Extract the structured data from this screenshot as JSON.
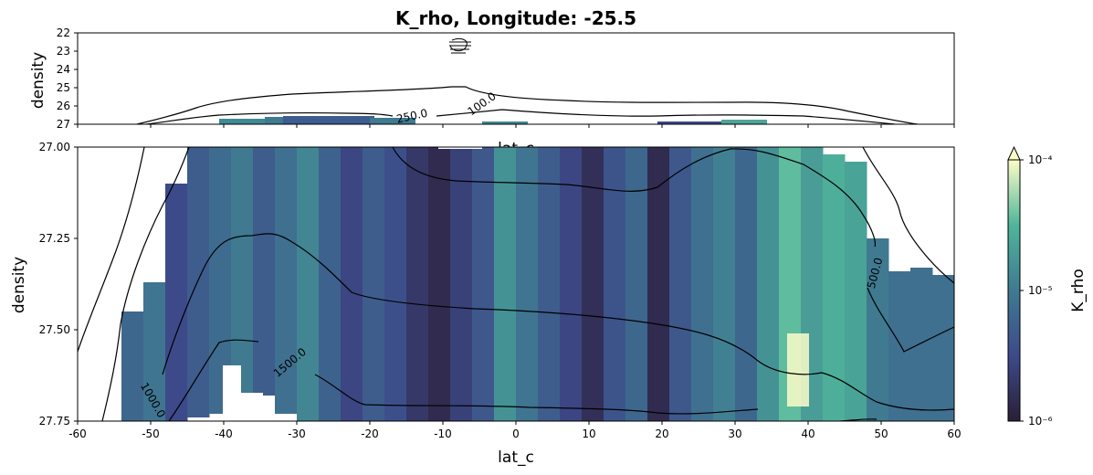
{
  "title": "K_rho, Longitude: -25.5",
  "colors": {
    "map_low": "#2b1e36",
    "map_mid1": "#3d4a8a",
    "map_mid2": "#3f7a91",
    "map_mid3": "#4fb59a",
    "map_high": "#fdfdc9",
    "contour": "#000000"
  },
  "chart_data": [
    {
      "type": "heatmap",
      "panel": "top",
      "title": "K_rho, Longitude: -25.5",
      "xlabel": "lat_c",
      "ylabel": "density",
      "xlim": [
        -60,
        60
      ],
      "ylim": [
        27,
        22
      ],
      "x_ticks": [
        "-60",
        "-50",
        "-40",
        "-30",
        "-20",
        "-10",
        "0",
        "10",
        "20",
        "30",
        "40",
        "50",
        "60"
      ],
      "y_ticks": [
        "22",
        "23",
        "24",
        "25",
        "26",
        "27"
      ],
      "contour_labels": [
        "250.0",
        "100.0"
      ]
    },
    {
      "type": "heatmap",
      "panel": "main",
      "xlabel": "lat_c",
      "ylabel": "density",
      "xlim": [
        -60,
        60
      ],
      "ylim": [
        27.75,
        27.0
      ],
      "x_ticks": [
        "-60",
        "-50",
        "-40",
        "-30",
        "-20",
        "-10",
        "0",
        "10",
        "20",
        "30",
        "40",
        "50",
        "60"
      ],
      "y_ticks": [
        "27.00",
        "27.25",
        "27.50",
        "27.75"
      ],
      "colorbar": {
        "label": "K_rho",
        "scale": "log",
        "range": [
          1e-06,
          0.0001
        ],
        "ticks": [
          "10⁻⁶",
          "10⁻⁵",
          "10⁻⁴"
        ]
      },
      "contour_labels": [
        "1500.0",
        "1000.0",
        "500.0"
      ],
      "columns": [
        {
          "lat": -52.5,
          "top": 27.45,
          "bottom": 27.75,
          "log10K": -5.2
        },
        {
          "lat": -49.5,
          "top": 27.37,
          "bottom": 27.76,
          "log10K": -5.05
        },
        {
          "lat": -46.5,
          "top": 27.1,
          "bottom": 27.76,
          "log10K": -5.5
        },
        {
          "lat": -43.5,
          "top": 27.0,
          "bottom": 27.74,
          "log10K": -5.3
        },
        {
          "lat": -40.5,
          "top": 27.0,
          "bottom": 27.73,
          "log10K": -5.15
        },
        {
          "lat": -37.5,
          "top": 27.0,
          "bottom": 27.75,
          "log10K": -5.0
        },
        {
          "lat": -34.5,
          "top": 27.0,
          "bottom": 27.68,
          "log10K": -5.3
        },
        {
          "lat": -31.5,
          "top": 27.0,
          "bottom": 27.73,
          "log10K": -5.1
        },
        {
          "lat": -28.5,
          "top": 27.0,
          "bottom": 27.75,
          "log10K": -4.9
        },
        {
          "lat": -25.5,
          "top": 27.0,
          "bottom": 27.75,
          "log10K": -5.25
        },
        {
          "lat": -22.5,
          "top": 27.0,
          "bottom": 27.75,
          "log10K": -5.55
        },
        {
          "lat": -19.5,
          "top": 27.0,
          "bottom": 27.75,
          "log10K": -5.3
        },
        {
          "lat": -16.5,
          "top": 27.0,
          "bottom": 27.75,
          "log10K": -5.45
        },
        {
          "lat": -13.5,
          "top": 27.0,
          "bottom": 27.75,
          "log10K": -5.7
        },
        {
          "lat": -10.5,
          "top": 27.0,
          "bottom": 27.75,
          "log10K": -5.85
        },
        {
          "lat": -7.5,
          "top": 27.0,
          "bottom": 27.75,
          "log10K": -5.6
        },
        {
          "lat": -4.5,
          "top": 27.0,
          "bottom": 27.75,
          "log10K": -5.35
        },
        {
          "lat": -1.5,
          "top": 27.0,
          "bottom": 27.75,
          "log10K": -4.8
        },
        {
          "lat": 1.5,
          "top": 27.0,
          "bottom": 27.75,
          "log10K": -5.05
        },
        {
          "lat": 4.5,
          "top": 27.0,
          "bottom": 27.75,
          "log10K": -5.3
        },
        {
          "lat": 7.5,
          "top": 27.0,
          "bottom": 27.75,
          "log10K": -5.55
        },
        {
          "lat": 10.5,
          "top": 27.0,
          "bottom": 27.75,
          "log10K": -5.8
        },
        {
          "lat": 13.5,
          "top": 27.0,
          "bottom": 27.75,
          "log10K": -5.4
        },
        {
          "lat": 16.5,
          "top": 27.0,
          "bottom": 27.75,
          "log10K": -5.2
        },
        {
          "lat": 19.5,
          "top": 27.0,
          "bottom": 27.75,
          "log10K": -5.85
        },
        {
          "lat": 22.5,
          "top": 27.0,
          "bottom": 27.75,
          "log10K": -5.35
        },
        {
          "lat": 25.5,
          "top": 27.0,
          "bottom": 27.75,
          "log10K": -5.1
        },
        {
          "lat": 28.5,
          "top": 27.0,
          "bottom": 27.75,
          "log10K": -4.95
        },
        {
          "lat": 31.5,
          "top": 27.0,
          "bottom": 27.75,
          "log10K": -5.2
        },
        {
          "lat": 34.5,
          "top": 27.0,
          "bottom": 27.75,
          "log10K": -4.8
        },
        {
          "lat": 37.5,
          "top": 27.0,
          "bottom": 27.75,
          "log10K": -4.45
        },
        {
          "lat": 40.5,
          "top": 27.0,
          "bottom": 27.75,
          "log10K": -4.7
        },
        {
          "lat": 43.5,
          "top": 27.02,
          "bottom": 27.75,
          "log10K": -4.55
        },
        {
          "lat": 46.5,
          "top": 27.04,
          "bottom": 27.75,
          "log10K": -4.65
        },
        {
          "lat": 49.5,
          "top": 27.25,
          "bottom": 27.75,
          "log10K": -5.0
        },
        {
          "lat": 52.5,
          "top": 27.34,
          "bottom": 27.75,
          "log10K": -5.1
        },
        {
          "lat": 55.5,
          "top": 27.33,
          "bottom": 27.75,
          "log10K": -5.1
        },
        {
          "lat": 58.5,
          "top": 27.35,
          "bottom": 27.75,
          "log10K": -5.1
        }
      ]
    }
  ]
}
